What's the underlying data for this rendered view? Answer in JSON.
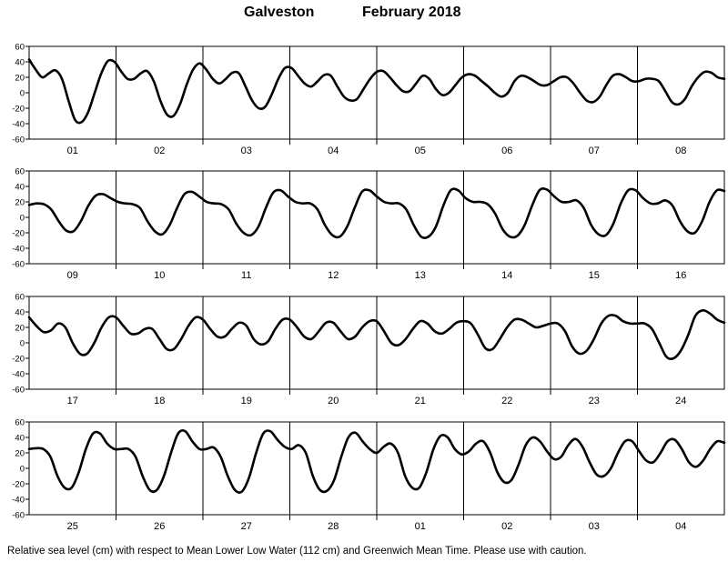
{
  "header": {
    "location": "Galveston",
    "month_year": "February   2018"
  },
  "footer": {
    "note": "Relative sea level (cm) with respect to Mean Lower Low Water (112 cm) and Greenwich Mean Time. Please use with caution."
  },
  "chart_data": {
    "type": "line",
    "title": "Galveston February 2018",
    "ylabel": "Relative sea level (cm)",
    "ylim": [
      -60,
      60
    ],
    "yticks": [
      60,
      40,
      20,
      0,
      -20,
      -40,
      -60
    ],
    "grid": false,
    "panels": [
      {
        "day_labels": [
          "01",
          "02",
          "03",
          "04",
          "05",
          "06",
          "07",
          "08"
        ],
        "values": [
          43,
          30,
          20,
          25,
          29,
          18,
          -10,
          -35,
          -38,
          -25,
          0,
          25,
          41,
          40,
          28,
          18,
          18,
          25,
          28,
          15,
          -10,
          -28,
          -30,
          -15,
          10,
          30,
          38,
          30,
          18,
          12,
          18,
          26,
          25,
          8,
          -10,
          -20,
          -18,
          -2,
          18,
          32,
          32,
          22,
          12,
          8,
          15,
          23,
          22,
          8,
          -5,
          -10,
          -8,
          5,
          18,
          27,
          28,
          20,
          10,
          2,
          2,
          12,
          22,
          18,
          5,
          -3,
          0,
          10,
          20,
          24,
          22,
          15,
          8,
          0,
          -5,
          0,
          15,
          22,
          20,
          15,
          10,
          10,
          15,
          20,
          20,
          12,
          0,
          -10,
          -12,
          -5,
          10,
          22,
          24,
          20,
          15,
          15,
          18,
          18,
          15,
          2,
          -12,
          -15,
          -8,
          8,
          20,
          27,
          26,
          20,
          18
        ]
      },
      {
        "day_labels": [
          "09",
          "10",
          "11",
          "12",
          "13",
          "14",
          "15",
          "16"
        ],
        "values": [
          16,
          18,
          17,
          10,
          -5,
          -17,
          -18,
          -5,
          15,
          28,
          30,
          25,
          20,
          18,
          17,
          12,
          -5,
          -18,
          -22,
          -10,
          12,
          30,
          33,
          27,
          20,
          18,
          17,
          10,
          -8,
          -20,
          -23,
          -12,
          12,
          32,
          35,
          27,
          20,
          18,
          18,
          10,
          -10,
          -23,
          -25,
          -12,
          12,
          33,
          35,
          27,
          20,
          18,
          18,
          10,
          -10,
          -25,
          -25,
          -12,
          15,
          35,
          35,
          25,
          20,
          20,
          17,
          5,
          -15,
          -25,
          -24,
          -10,
          15,
          35,
          36,
          27,
          20,
          20,
          22,
          12,
          -10,
          -22,
          -23,
          -8,
          18,
          35,
          35,
          25,
          18,
          18,
          22,
          15,
          -5,
          -18,
          -20,
          -5,
          20,
          35,
          34
        ]
      },
      {
        "day_labels": [
          "17",
          "18",
          "19",
          "20",
          "21",
          "22",
          "23",
          "24"
        ],
        "values": [
          33,
          22,
          14,
          16,
          25,
          20,
          0,
          -14,
          -14,
          0,
          20,
          33,
          33,
          22,
          12,
          12,
          18,
          18,
          5,
          -8,
          -8,
          5,
          22,
          33,
          30,
          18,
          8,
          8,
          18,
          26,
          22,
          5,
          -2,
          2,
          18,
          30,
          30,
          20,
          8,
          5,
          15,
          26,
          26,
          15,
          5,
          8,
          20,
          28,
          28,
          15,
          0,
          -3,
          5,
          18,
          28,
          25,
          15,
          12,
          18,
          26,
          28,
          25,
          10,
          -7,
          -8,
          5,
          20,
          30,
          30,
          25,
          20,
          22,
          25,
          25,
          15,
          -5,
          -14,
          -10,
          5,
          25,
          35,
          35,
          28,
          25,
          25,
          25,
          18,
          0,
          -18,
          -20,
          -10,
          10,
          35,
          42,
          38,
          30,
          26
        ]
      },
      {
        "day_labels": [
          "25",
          "26",
          "27",
          "28",
          "01",
          "02",
          "03",
          "04"
        ],
        "values": [
          25,
          26,
          25,
          15,
          -10,
          -25,
          -25,
          -5,
          25,
          45,
          45,
          32,
          25,
          25,
          25,
          15,
          -10,
          -28,
          -28,
          -10,
          20,
          45,
          48,
          35,
          25,
          25,
          27,
          15,
          -10,
          -28,
          -30,
          -12,
          20,
          45,
          48,
          37,
          28,
          25,
          30,
          20,
          -10,
          -28,
          -29,
          -15,
          15,
          40,
          46,
          35,
          25,
          20,
          28,
          32,
          20,
          -10,
          -25,
          -25,
          -5,
          25,
          42,
          40,
          25,
          18,
          22,
          32,
          35,
          20,
          -5,
          -18,
          -15,
          5,
          30,
          40,
          35,
          22,
          12,
          15,
          30,
          38,
          28,
          8,
          -8,
          -10,
          0,
          20,
          35,
          35,
          22,
          10,
          8,
          20,
          35,
          37,
          25,
          8,
          2,
          10,
          25,
          35,
          33
        ]
      }
    ]
  }
}
